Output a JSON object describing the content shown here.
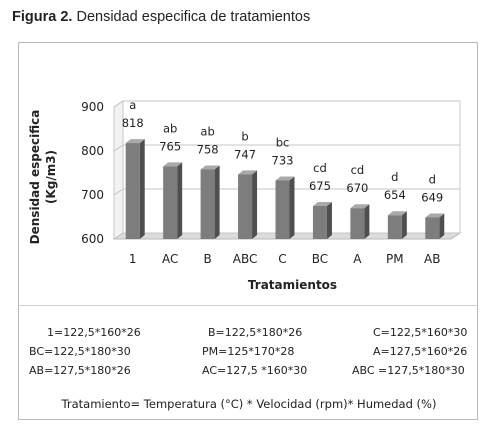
{
  "caption": {
    "label": "Figura 2.",
    "text": "Densidad especifica de tratamientos"
  },
  "chart_data": {
    "type": "bar",
    "categories": [
      "1",
      "AC",
      "B",
      "ABC",
      "C",
      "BC",
      "A",
      "PM",
      "AB"
    ],
    "values": [
      818,
      765,
      758,
      747,
      733,
      675,
      670,
      654,
      649
    ],
    "letters": [
      "a",
      "ab",
      "ab",
      "b",
      "bc",
      "cd",
      "cd",
      "d",
      "d"
    ],
    "ylabel_line1": "Densidad especifica",
    "ylabel_line2": "(Kg/m3)",
    "xlabel": "Tratamientos",
    "ylim": [
      600,
      900
    ],
    "yticks": [
      "600",
      "700",
      "800",
      "900"
    ],
    "grid": true,
    "bar_color": "#7d7d7d"
  },
  "legend": {
    "rows": [
      [
        "1=122,5*160*26",
        "B=122,5*180*26",
        "C=122,5*160*30"
      ],
      [
        "BC=122,5*180*30",
        "PM=125*170*28",
        "A=127,5*160*26"
      ],
      [
        "AB=127,5*180*26",
        "AC=127,5 *160*30",
        "ABC =127,5*180*30"
      ]
    ],
    "footnote": "Tratamiento= Temperatura  (°C) * Velocidad (rpm)* Humedad (%)"
  }
}
